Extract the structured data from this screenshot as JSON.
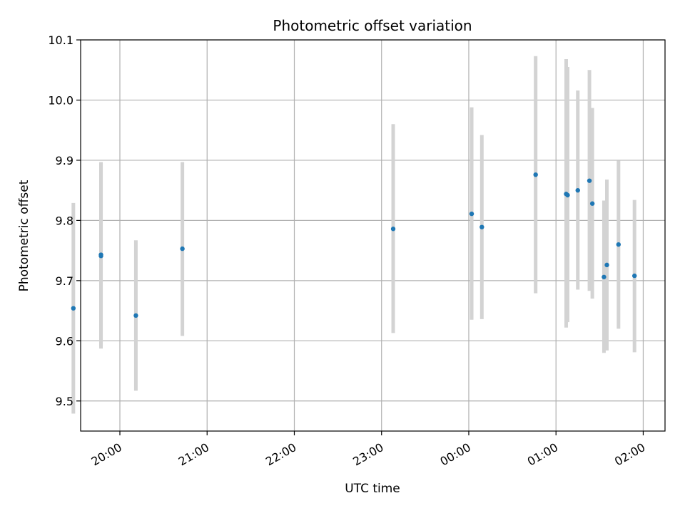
{
  "chart_data": {
    "type": "scatter",
    "title": "Photometric offset variation",
    "xlabel": "UTC time",
    "ylabel": "Photometric offset",
    "x_axis": {
      "kind": "time",
      "range": [
        "19:33",
        "02:15"
      ],
      "ticks": [
        "20:00",
        "21:00",
        "22:00",
        "23:00",
        "00:00",
        "01:00",
        "02:00"
      ]
    },
    "y_axis": {
      "range": [
        9.45,
        10.1
      ],
      "ticks": [
        "9.5",
        "9.6",
        "9.7",
        "9.8",
        "9.9",
        "10.0",
        "10.1"
      ]
    },
    "grid": true,
    "colors": {
      "marker": "#1f77b4",
      "errorbar": "#d3d3d3",
      "grid": "#b0b0b0"
    },
    "series": [
      {
        "points": [
          {
            "t": "19:28",
            "y": 9.654,
            "ylow": 9.479,
            "yhigh": 9.829
          },
          {
            "t": "19:47",
            "y": 9.741,
            "ylow": 9.587,
            "yhigh": 9.897
          },
          {
            "t": "19:47",
            "y": 9.743,
            "ylow": 9.59,
            "yhigh": 9.895
          },
          {
            "t": "20:11",
            "y": 9.642,
            "ylow": 9.517,
            "yhigh": 9.767
          },
          {
            "t": "20:43",
            "y": 9.753,
            "ylow": 9.608,
            "yhigh": 9.897
          },
          {
            "t": "23:08",
            "y": 9.786,
            "ylow": 9.613,
            "yhigh": 9.96
          },
          {
            "t": "00:02",
            "y": 9.811,
            "ylow": 9.635,
            "yhigh": 9.988
          },
          {
            "t": "00:09",
            "y": 9.789,
            "ylow": 9.636,
            "yhigh": 9.942
          },
          {
            "t": "00:46",
            "y": 9.876,
            "ylow": 9.679,
            "yhigh": 10.073
          },
          {
            "t": "01:07",
            "y": 9.844,
            "ylow": 9.622,
            "yhigh": 10.068
          },
          {
            "t": "01:08",
            "y": 9.842,
            "ylow": 9.631,
            "yhigh": 10.055
          },
          {
            "t": "01:15",
            "y": 9.85,
            "ylow": 9.685,
            "yhigh": 10.016
          },
          {
            "t": "01:23",
            "y": 9.866,
            "ylow": 9.683,
            "yhigh": 10.05
          },
          {
            "t": "01:25",
            "y": 9.828,
            "ylow": 9.67,
            "yhigh": 9.987
          },
          {
            "t": "01:33",
            "y": 9.706,
            "ylow": 9.58,
            "yhigh": 9.833
          },
          {
            "t": "01:35",
            "y": 9.726,
            "ylow": 9.584,
            "yhigh": 9.868
          },
          {
            "t": "01:43",
            "y": 9.76,
            "ylow": 9.62,
            "yhigh": 9.899
          },
          {
            "t": "01:54",
            "y": 9.708,
            "ylow": 9.581,
            "yhigh": 9.834
          }
        ]
      }
    ]
  }
}
